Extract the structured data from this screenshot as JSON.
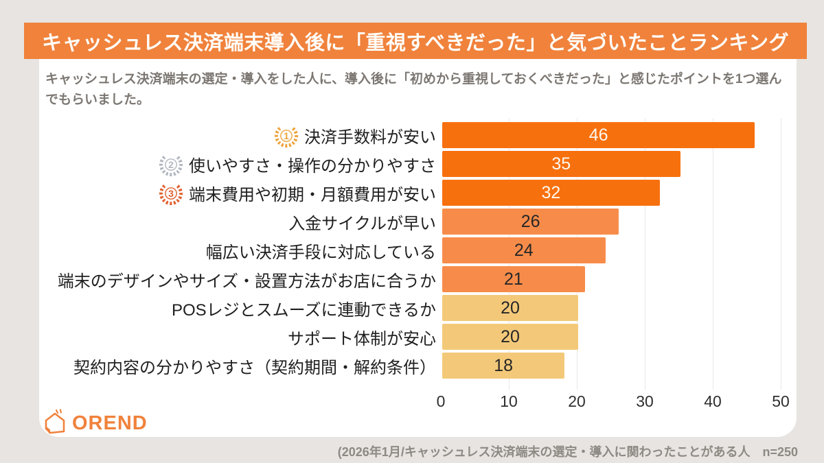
{
  "page": {
    "title": "キャッシュレス決済端末導入後に「重視すべきだった」と気づいたことランキング",
    "subtitle": "キャッシュレス決済端末の選定・導入をした人に、導入後に「初めから重視しておくべきだった」と感じたポイントを1つ選んでもらいました。",
    "source_note": "(2026年1月/キャッシュレス決済端末の選定・導入に関わったことがある人　n=250",
    "logo_text": "OREND"
  },
  "colors": {
    "background": "#E7E4E1",
    "banner": "#F0823C",
    "bar_high": "#F7700E",
    "bar_mid": "#F78C4A",
    "bar_low": "#F3C979",
    "value_light": "#FDF8ED",
    "value_dark": "#262626",
    "medal_gold": "#EDA43C",
    "medal_silver": "#B2B7BF",
    "medal_bronze": "#E0612F",
    "logo_orange": "#F0823C",
    "gridline": "#E8E8E8"
  },
  "chart_data": {
    "type": "bar",
    "orientation": "horizontal",
    "title": "キャッシュレス決済端末導入後に「重視すべきだった」と気づいたことランキング",
    "categories": [
      "決済手数料が安い",
      "使いやすさ・操作の分かりやすさ",
      "端末費用や初期・月額費用が安い",
      "入金サイクルが早い",
      "幅広い決済手段に対応している",
      "端末のデザインやサイズ・設置方法がお店に合うか",
      "POSレジとスムーズに連動できるか",
      "サポート体制が安心",
      "契約内容の分かりやすさ（契約期間・解約条件）"
    ],
    "values": [
      46,
      35,
      32,
      26,
      24,
      21,
      20,
      20,
      18
    ],
    "ranks": [
      1,
      2,
      3,
      0,
      0,
      0,
      0,
      0,
      0
    ],
    "bar_tiers": [
      "high",
      "high",
      "high",
      "mid",
      "mid",
      "mid",
      "low",
      "low",
      "low"
    ],
    "value_label_style": [
      "light",
      "light",
      "light",
      "dark",
      "dark",
      "dark",
      "dark",
      "dark",
      "dark"
    ],
    "xticks": [
      0,
      10,
      20,
      30,
      40,
      50
    ],
    "xlim": [
      0,
      50
    ],
    "xlabel": "",
    "ylabel": "",
    "grid": true,
    "legend": false
  }
}
